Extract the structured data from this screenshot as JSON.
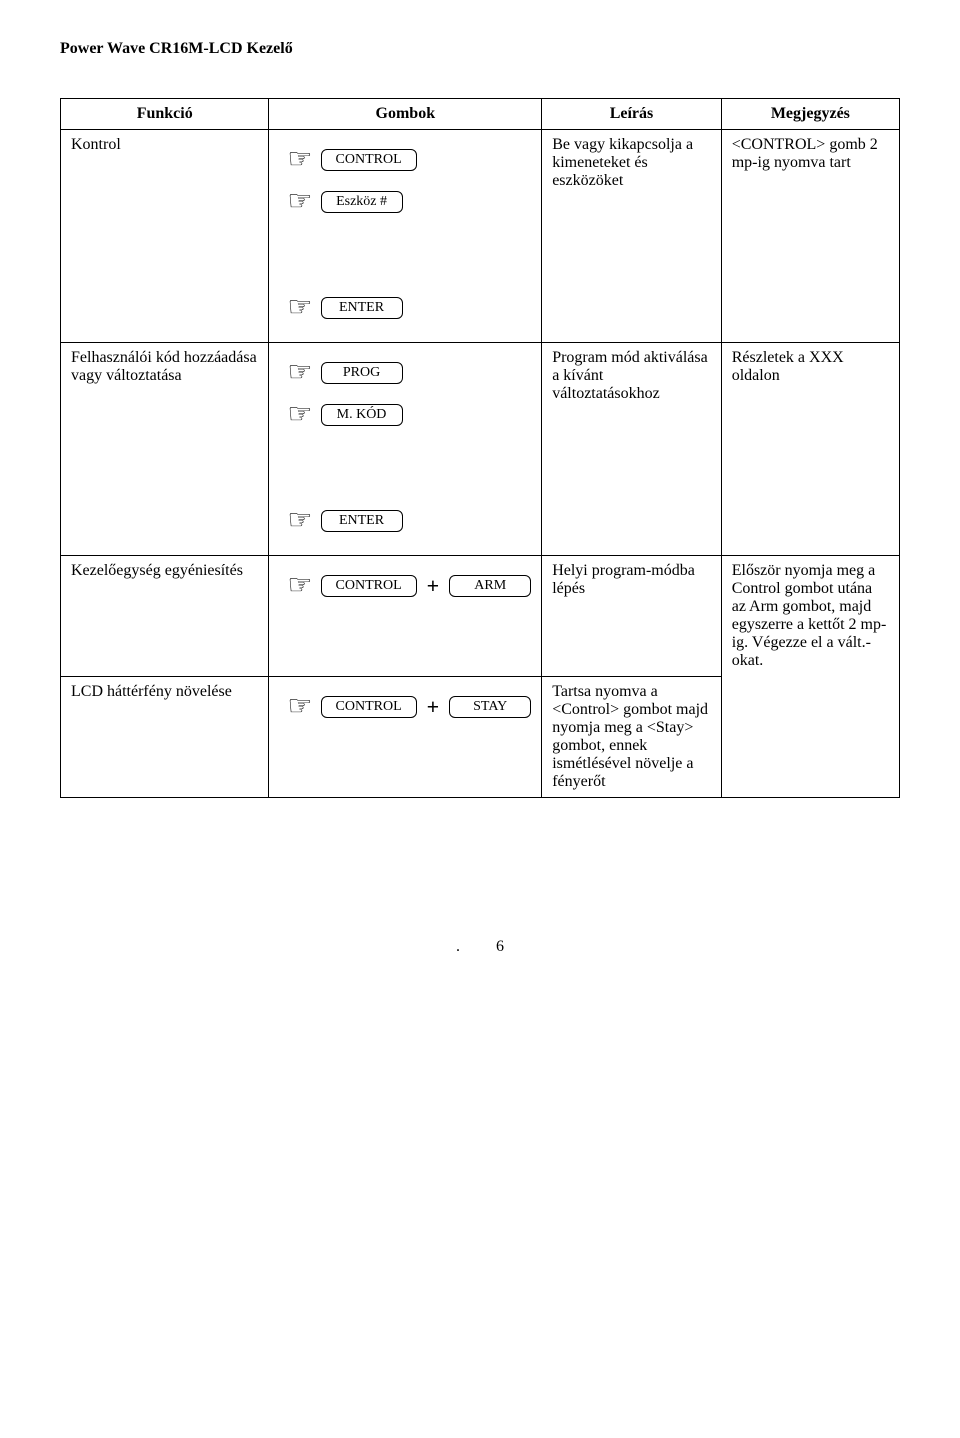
{
  "doc": {
    "title": "Power Wave CR16M-LCD Kezelő"
  },
  "headers": {
    "func": "Funkció",
    "buttons": "Gombok",
    "desc": "Leírás",
    "note": "Megjegyzés"
  },
  "rows": {
    "r1": {
      "func": "Kontrol",
      "btn1": "CONTROL",
      "btn2": "Eszköz #",
      "desc": "Be vagy kikapcsolja a kimeneteket és eszközöket",
      "note": "<CONTROL> gomb 2 mp-ig nyomva tart"
    },
    "r2": {
      "btn": "ENTER"
    },
    "r3": {
      "func": "Felhasználói kód hozzáadása vagy változtatása",
      "btn1": "PROG",
      "btn2": "M. KÓD",
      "desc": "Program mód aktiválása a kívánt változtatásokhoz",
      "note": "Részletek a XXX oldalon"
    },
    "r4": {
      "btn": "ENTER"
    },
    "r5": {
      "func": "Kezelőegység egyéniesítés",
      "btn1": "CONTROL",
      "btn2": "ARM",
      "desc": "Helyi program-módba lépés",
      "note": "Először nyomja meg a Control gombot utána az Arm gombot, majd egyszerre a kettőt 2 mp-ig. Végezze el a vált.-okat."
    },
    "r6": {
      "func": "LCD háttérfény növelése",
      "btn1": "CONTROL",
      "btn2": "STAY",
      "desc": "Tartsa nyomva a <Control> gombot majd nyomja meg a <Stay> gombot, ennek ismétlésével növelje a fényerőt"
    }
  },
  "page": {
    "dot": ".",
    "num": "6"
  },
  "glyph": {
    "hand": "☞",
    "plus": "+"
  }
}
